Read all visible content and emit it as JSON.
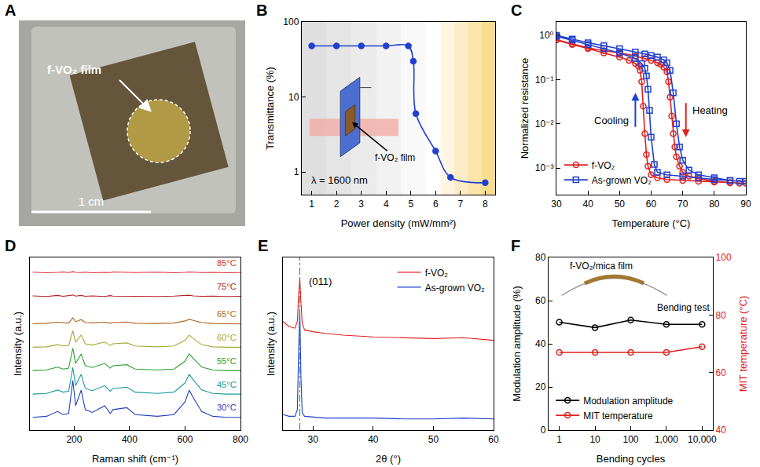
{
  "photo": {
    "panel": "A",
    "label": "f-VO₂ film",
    "scale_bar": "1 cm"
  },
  "chart_data": [
    {
      "panel": "B",
      "type": "line",
      "x_label": "Power density (mW/mm²)",
      "y_label": "Transmittance (%)",
      "x": [
        1,
        2,
        3,
        4,
        4.9,
        5.1,
        5.2,
        6,
        6.6,
        8
      ],
      "series": [
        {
          "color": "#2040d0",
          "marker": "circle",
          "values": [
            48,
            48,
            48,
            48,
            48,
            30,
            6,
            1.9,
            0.85,
            0.72
          ]
        }
      ],
      "log": "y",
      "grid": false,
      "xlim": [
        0.6,
        8.4
      ],
      "xticks": [
        1,
        2,
        3,
        4,
        5,
        6,
        7,
        8
      ],
      "ylim": [
        0.5,
        100
      ],
      "yticks": [
        1,
        10,
        100
      ],
      "annotations": [
        "λ = 1600 nm",
        "f-VO₂ film"
      ]
    },
    {
      "panel": "C",
      "type": "line",
      "x_label": "Temperature (°C)",
      "y_label": "Normalized resistance",
      "series": [
        {
          "name": "f-VO₂",
          "color": "#e02020",
          "marker": "open_circle",
          "x": [
            30,
            35,
            40,
            45,
            50,
            55,
            58,
            60,
            62,
            63,
            64,
            65,
            65.5,
            66,
            66.5,
            67,
            67.5,
            68,
            69,
            70,
            72,
            75,
            80,
            85,
            90,
            88,
            85,
            80,
            75,
            70,
            65,
            62,
            60,
            59,
            58.5,
            58,
            57.5,
            57,
            56.5,
            56,
            55,
            53,
            50,
            45,
            40,
            35,
            30
          ],
          "values": [
            0.8,
            0.65,
            0.52,
            0.45,
            0.4,
            0.34,
            0.3,
            0.27,
            0.24,
            0.22,
            0.19,
            0.15,
            0.09,
            0.04,
            0.015,
            0.006,
            0.003,
            0.0018,
            0.0011,
            0.0008,
            0.00065,
            0.00058,
            0.0005,
            0.00047,
            0.00045,
            0.00045,
            0.00046,
            0.00048,
            0.0005,
            0.00052,
            0.00055,
            0.0006,
            0.0007,
            0.0011,
            0.002,
            0.006,
            0.025,
            0.09,
            0.16,
            0.2,
            0.23,
            0.27,
            0.32,
            0.4,
            0.5,
            0.62,
            0.78
          ]
        },
        {
          "name": "As-grown VO₂",
          "color": "#2040d0",
          "marker": "open_square",
          "x": [
            30,
            35,
            40,
            45,
            50,
            55,
            58,
            60,
            62,
            64,
            65,
            66,
            67,
            68,
            69,
            70,
            72,
            75,
            80,
            85,
            90,
            88,
            85,
            80,
            75,
            70,
            65,
            62,
            61,
            60,
            59.5,
            59,
            58.5,
            58,
            57,
            55,
            50,
            45,
            40,
            35,
            30
          ],
          "values": [
            1.0,
            0.82,
            0.68,
            0.58,
            0.5,
            0.42,
            0.38,
            0.35,
            0.32,
            0.28,
            0.24,
            0.16,
            0.05,
            0.01,
            0.003,
            0.0015,
            0.0009,
            0.0007,
            0.0006,
            0.00052,
            0.0005,
            0.0005,
            0.00052,
            0.00055,
            0.0006,
            0.00065,
            0.0007,
            0.0008,
            0.0012,
            0.005,
            0.02,
            0.06,
            0.12,
            0.18,
            0.23,
            0.3,
            0.4,
            0.5,
            0.62,
            0.78,
            0.95
          ]
        }
      ],
      "log": "y",
      "grid": false,
      "legend": "bottom left",
      "xlim": [
        30,
        90
      ],
      "xticks": [
        30,
        40,
        50,
        60,
        70,
        80,
        90
      ],
      "ylim": [
        0.00025,
        2
      ],
      "yticks": [
        {
          "value": 0.001,
          "label": "10⁻³"
        },
        {
          "value": 0.01,
          "label": "10⁻²"
        },
        {
          "value": 0.1,
          "label": "10⁻¹"
        },
        {
          "value": 1,
          "label": "10⁰"
        }
      ],
      "annotations": [
        "Cooling",
        "Heating"
      ]
    },
    {
      "panel": "D",
      "type": "line",
      "x_label": "Raman shift (cm⁻¹)",
      "y_label": "Intensity (a.u.)",
      "x": [
        50,
        100,
        140,
        160,
        180,
        195,
        205,
        225,
        240,
        265,
        310,
        330,
        340,
        390,
        420,
        500,
        560,
        600,
        615,
        630,
        660,
        700,
        750,
        800
      ],
      "series": [
        {
          "name": "85°C",
          "color": "#e03030",
          "values": [
            7.32,
            7.29,
            7.31,
            7.33,
            7.3,
            7.34,
            7.31,
            7.3,
            7.32,
            7.29,
            7.31,
            7.3,
            7.33,
            7.31,
            7.3,
            7.32,
            7.29,
            7.31,
            7.33,
            7.32,
            7.3,
            7.31,
            7.29,
            7.3
          ]
        },
        {
          "name": "75°C",
          "color": "#b22222",
          "values": [
            6.22,
            6.19,
            6.24,
            6.2,
            6.23,
            6.26,
            6.21,
            6.24,
            6.2,
            6.22,
            6.19,
            6.23,
            6.21,
            6.2,
            6.22,
            6.19,
            6.21,
            6.23,
            6.25,
            6.22,
            6.2,
            6.21,
            6.19,
            6.2
          ]
        },
        {
          "name": "65°C",
          "color": "#b5651d",
          "values": [
            4.93,
            4.95,
            5.0,
            4.97,
            4.96,
            5.2,
            5.02,
            5.12,
            4.98,
            4.97,
            5.0,
            4.95,
            4.99,
            5.01,
            4.95,
            4.94,
            4.96,
            5.06,
            5.13,
            5.08,
            4.98,
            4.94,
            4.93,
            4.92
          ]
        },
        {
          "name": "60°C",
          "color": "#a8a83a",
          "values": [
            3.84,
            3.86,
            3.96,
            3.9,
            3.92,
            4.6,
            4.08,
            4.4,
            4.0,
            3.94,
            4.08,
            3.92,
            4.0,
            4.04,
            3.9,
            3.86,
            3.9,
            4.16,
            4.4,
            4.24,
            3.96,
            3.86,
            3.84,
            3.84
          ]
        },
        {
          "name": "55°C",
          "color": "#2ca02c",
          "values": [
            2.76,
            2.79,
            2.92,
            2.83,
            2.87,
            3.8,
            3.09,
            3.53,
            2.98,
            2.9,
            3.09,
            2.87,
            2.98,
            3.03,
            2.83,
            2.79,
            2.83,
            3.2,
            3.53,
            3.31,
            2.92,
            2.79,
            2.76,
            2.76
          ]
        },
        {
          "name": "45°C",
          "color": "#1a9a9a",
          "values": [
            1.67,
            1.7,
            1.86,
            1.76,
            1.8,
            2.9,
            2.06,
            2.58,
            1.93,
            1.83,
            2.06,
            1.8,
            1.93,
            1.99,
            1.76,
            1.7,
            1.76,
            2.19,
            2.58,
            2.32,
            1.86,
            1.7,
            1.67,
            1.67
          ]
        },
        {
          "name": "30°C",
          "color": "#1f3fbf",
          "values": [
            0.59,
            0.64,
            0.86,
            0.72,
            0.77,
            2.3,
            1.13,
            1.85,
            0.95,
            0.82,
            1.13,
            0.77,
            0.95,
            1.04,
            0.72,
            0.64,
            0.72,
            1.31,
            1.85,
            1.49,
            0.86,
            0.64,
            0.59,
            0.59
          ]
        }
      ],
      "grid": false,
      "tick_labels": "x",
      "xlim": [
        40,
        800
      ],
      "xticks": [
        200,
        400,
        600,
        800
      ],
      "ylim": [
        0,
        8
      ]
    },
    {
      "panel": "E",
      "type": "line",
      "x_label": "2θ (°)",
      "y_label": "Intensity (a.u.)",
      "x": [
        25,
        26,
        27,
        27.4,
        27.6,
        27.8,
        28.0,
        28.2,
        28.6,
        30,
        32,
        35,
        40,
        45,
        50,
        55,
        60
      ],
      "series": [
        {
          "name": "f-VO₂",
          "color": "#e02020",
          "values": [
            6.3,
            6.0,
            5.9,
            6.3,
            7.8,
            8.8,
            7.4,
            6.2,
            5.8,
            5.7,
            5.6,
            5.5,
            5.4,
            5.35,
            5.3,
            5.35,
            5.2
          ]
        },
        {
          "name": "As-grown VO₂",
          "color": "#2040d0",
          "values": [
            0.9,
            0.8,
            0.8,
            1.2,
            4.5,
            7.0,
            3.0,
            1.0,
            0.8,
            0.75,
            0.7,
            0.7,
            0.7,
            0.65,
            0.65,
            0.7,
            0.65
          ]
        }
      ],
      "reference_x": 27.8,
      "grid": false,
      "legend": "top right",
      "tick_labels": "x",
      "xlim": [
        25,
        60
      ],
      "xticks": [
        30,
        40,
        50,
        60
      ],
      "ylim": [
        0,
        10
      ],
      "annotations": [
        "(011)"
      ]
    },
    {
      "panel": "F",
      "type": "line",
      "x_label": "Bending cycles",
      "y_label": "Modulation amplitude (%)",
      "y2_label": "MIT temperature (°C)",
      "x": [
        1,
        10,
        100,
        1000,
        10000
      ],
      "series": [
        {
          "name": "Modulation amplitude",
          "color": "#000000",
          "marker": "open_circle",
          "values": [
            50,
            47.5,
            51,
            49,
            49
          ]
        },
        {
          "name": "MIT temperature",
          "color": "#e02020",
          "marker": "open_circle",
          "axis": "y2",
          "values": [
            67,
            67,
            67,
            67,
            69
          ]
        }
      ],
      "log": "x",
      "grid": false,
      "legend": "bottom left",
      "xlim": [
        0.5,
        20000
      ],
      "xticks": [
        1,
        10,
        100,
        {
          "value": 1000,
          "label": "1,000"
        },
        {
          "value": 10000,
          "label": "10,000"
        }
      ],
      "ylim": [
        0,
        80
      ],
      "yticks": [
        0,
        20,
        40,
        60,
        80
      ],
      "y2lim": [
        40,
        100
      ],
      "y2ticks": [
        40,
        60,
        80,
        100
      ],
      "annotations": [
        "f-VO₂/mica film",
        "Bending test"
      ]
    }
  ]
}
